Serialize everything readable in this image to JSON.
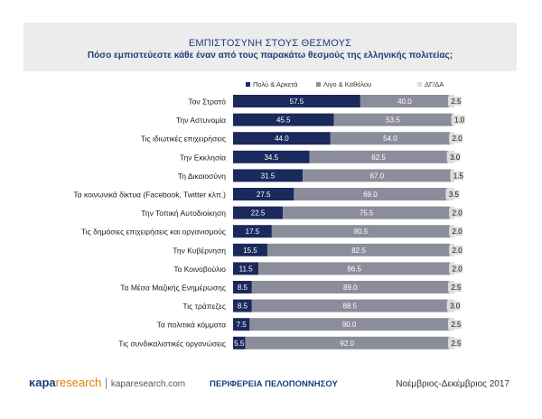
{
  "header": {
    "title": "ΕΜΠΙΣΤΟΣΥΝΗ ΣΤΟΥΣ ΘΕΣΜΟΥΣ",
    "subtitle": "Πόσο εμπιστεύεστε κάθε έναν από τους παρακάτω θεσμούς της ελληνικής πολιτείας;"
  },
  "chart_data": {
    "type": "bar",
    "orientation": "horizontal",
    "stacked": true,
    "xlim": [
      0,
      100
    ],
    "legend_position": "top",
    "categories": [
      "Τον Στρατό",
      "Την Αστυνομία",
      "Τις ιδιωτικές επιχειρήσεις",
      "Την Εκκλησία",
      "Τη Δικαιοσύνη",
      "Τα κοινωνικά δίκτυα (Facebook, Twitter κλπ.)",
      "Την Τοπική Αυτοδιοίκηση",
      "Τις δημόσιες επιχειρήσεις και οργανισμούς",
      "Την Κυβέρνηση",
      "Το Κοινοβούλιο",
      "Τα Μέσα Μαζικής Ενημέρωσης",
      "Τις τράπεζες",
      "Τα πολιτικά κόμματα",
      "Τις συνδικαλιστικές οργανώσεις"
    ],
    "series": [
      {
        "name": "Πολύ & Αρκετά",
        "color": "#1b2a5c",
        "values": [
          57.5,
          45.5,
          44.0,
          34.5,
          31.5,
          27.5,
          22.5,
          17.5,
          15.5,
          11.5,
          8.5,
          8.5,
          7.5,
          5.5
        ]
      },
      {
        "name": "Λίγο & Καθόλου",
        "color": "#8b8d9a",
        "values": [
          40.0,
          53.5,
          54.0,
          62.5,
          67.0,
          69.0,
          75.5,
          80.5,
          82.5,
          86.5,
          89.0,
          88.5,
          90.0,
          92.0
        ]
      },
      {
        "name": "ΔΓ/ΔΑ",
        "color": "#dcdcdc",
        "values": [
          2.5,
          1.0,
          2.0,
          3.0,
          1.5,
          3.5,
          2.0,
          2.0,
          2.0,
          2.0,
          2.5,
          3.0,
          2.5,
          2.5
        ]
      }
    ]
  },
  "footer": {
    "brand_kapa": "κapa",
    "brand_research": "research",
    "separator": "|",
    "url": "kaparesearch.com",
    "region": "ΠΕΡΙΦΕΡΕΙΑ ΠΕΛΟΠΟΝΝΗΣΟΥ",
    "date": "Νοέμβριος-Δεκέμβριος 2017"
  }
}
